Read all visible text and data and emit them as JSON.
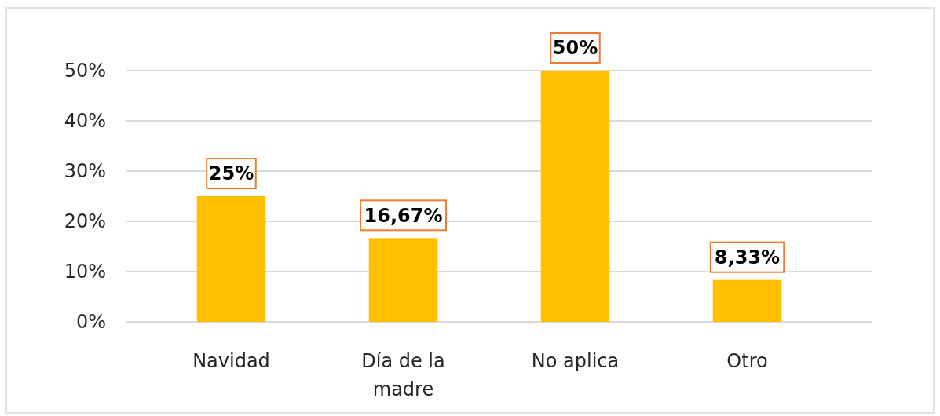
{
  "chart_data": {
    "type": "bar",
    "categories": [
      "Navidad",
      "Día de la madre",
      "No aplica",
      "Otro"
    ],
    "values": [
      25,
      16.67,
      50,
      8.33
    ],
    "color": "#ffc000",
    "value_labels": [
      "25%",
      "16,67%",
      "50%",
      "8,33%"
    ],
    "ylim": [
      0,
      50
    ],
    "yticks": [
      {
        "value": 0,
        "label": "0%"
      },
      {
        "value": 10,
        "label": "10%"
      },
      {
        "value": 20,
        "label": "20%"
      },
      {
        "value": 30,
        "label": "30%"
      },
      {
        "value": 40,
        "label": "40%"
      },
      {
        "value": 50,
        "label": "50%"
      }
    ],
    "grid": true
  }
}
